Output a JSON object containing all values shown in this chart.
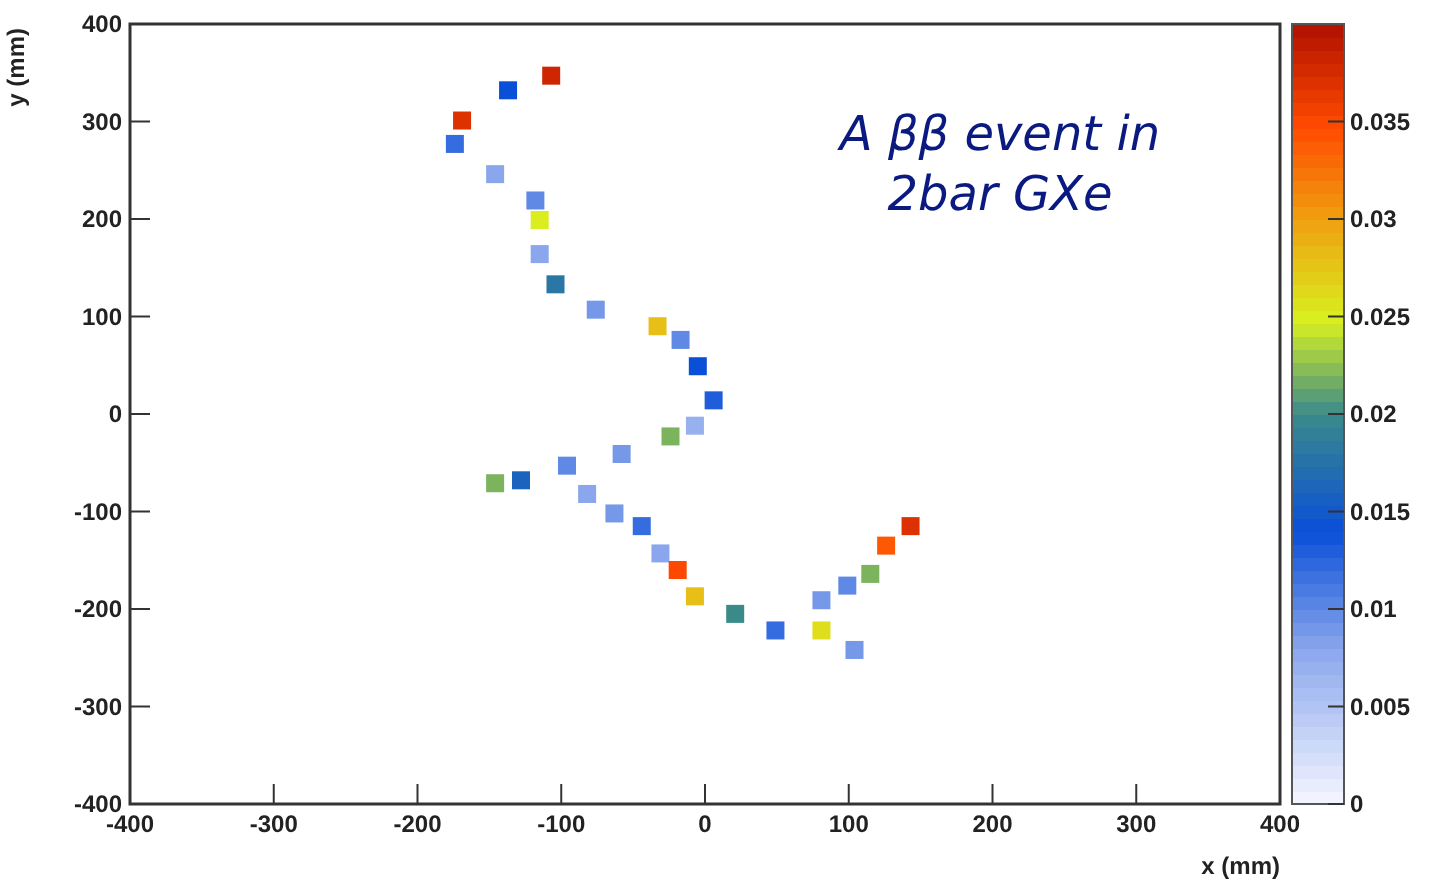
{
  "chart_data": {
    "type": "scatter",
    "title": "A ββ event in 2bar GXe",
    "xlabel": "x (mm)",
    "ylabel": "y (mm)",
    "marker": "square",
    "xlim": [
      -400,
      400
    ],
    "xticks": [
      -400,
      -300,
      -200,
      -100,
      0,
      100,
      200,
      300,
      400
    ],
    "ylim": [
      -400,
      400
    ],
    "yticks": [
      -400,
      -300,
      -200,
      -100,
      0,
      100,
      200,
      300,
      400
    ],
    "clim": [
      0,
      0.04
    ],
    "cticks": [
      0,
      0.005,
      0.01,
      0.015,
      0.02,
      0.025,
      0.03,
      0.035
    ],
    "x": [
      -107,
      -137,
      -169,
      -174,
      -146,
      -118,
      -115,
      -115,
      -104,
      -76,
      -33,
      -17,
      -5,
      6,
      -7,
      -24,
      -58,
      -96,
      -128,
      -146,
      -82,
      -63,
      -44,
      -31,
      -19,
      -7,
      21,
      49,
      81,
      104,
      81,
      99,
      115,
      126,
      143
    ],
    "values": [
      347,
      332,
      301,
      277,
      246,
      219,
      199,
      164,
      133,
      107,
      90,
      76,
      49,
      14,
      -12,
      -23,
      -41,
      -53,
      -68,
      -71,
      -82,
      -102,
      -115,
      -143,
      -160,
      -187,
      -205,
      -222,
      -222,
      -242,
      -191,
      -176,
      -164,
      -135,
      -115
    ],
    "cvalues": [
      0.038,
      0.014,
      0.037,
      0.012,
      0.008,
      0.01,
      0.025,
      0.008,
      0.018,
      0.009,
      0.028,
      0.01,
      0.014,
      0.013,
      0.007,
      0.022,
      0.009,
      0.01,
      0.016,
      0.022,
      0.008,
      0.009,
      0.012,
      0.008,
      0.035,
      0.028,
      0.02,
      0.012,
      0.026,
      0.009,
      0.009,
      0.01,
      0.022,
      0.034,
      0.037
    ]
  }
}
